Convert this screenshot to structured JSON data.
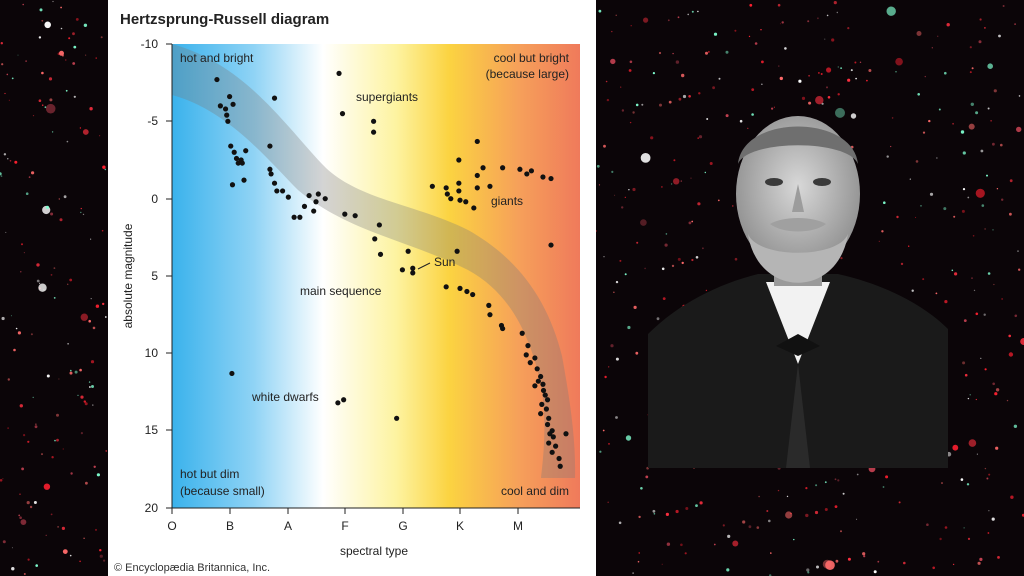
{
  "chart_data": {
    "type": "scatter",
    "title": "Hertzsprung-Russell diagram",
    "xlabel": "spectral type",
    "ylabel": "absolute magnitude",
    "x_categories": [
      "O",
      "B",
      "A",
      "F",
      "G",
      "K",
      "M"
    ],
    "y_ticks": [
      "-10",
      "-5",
      "0",
      "5",
      "10",
      "15",
      "20"
    ],
    "ylim": [
      -10,
      20
    ],
    "y_inverted": true,
    "background_gradient": [
      "#3ab2ec",
      "#8fd3f5",
      "#ffffff",
      "#fdf3a0",
      "#fbd341",
      "#f6a05a",
      "#ef7a5b"
    ],
    "region_labels": {
      "hot_bright": "hot and bright",
      "cool_bright_1": "cool but bright",
      "cool_bright_2": "(because large)",
      "hot_dim_1": "hot but dim",
      "hot_dim_2": "(because small)",
      "cool_dim": "cool and dim"
    },
    "annotations": {
      "supergiants": "supergiants",
      "giants": "giants",
      "sun": "Sun",
      "main_sequence": "main sequence",
      "white_dwarfs": "white dwarfs"
    },
    "points": [
      [
        0.78,
        -7.7
      ],
      [
        0.84,
        -6.0
      ],
      [
        0.93,
        -5.8
      ],
      [
        0.95,
        -5.4
      ],
      [
        1.0,
        -6.6
      ],
      [
        1.06,
        -6.1
      ],
      [
        0.97,
        -5.0
      ],
      [
        1.02,
        -3.4
      ],
      [
        1.08,
        -3.0
      ],
      [
        1.12,
        -2.6
      ],
      [
        1.2,
        -2.5
      ],
      [
        1.28,
        -3.1
      ],
      [
        1.15,
        -2.3
      ],
      [
        1.22,
        -2.3
      ],
      [
        1.05,
        -0.9
      ],
      [
        1.25,
        -1.2
      ],
      [
        1.78,
        -6.5
      ],
      [
        1.7,
        -3.4
      ],
      [
        1.7,
        -1.9
      ],
      [
        1.72,
        -1.6
      ],
      [
        1.78,
        -1.0
      ],
      [
        1.82,
        -0.5
      ],
      [
        1.92,
        -0.5
      ],
      [
        2.02,
        -0.1
      ],
      [
        2.12,
        1.2
      ],
      [
        2.22,
        1.2
      ],
      [
        2.3,
        0.5
      ],
      [
        2.38,
        -0.2
      ],
      [
        2.46,
        0.8
      ],
      [
        2.5,
        0.2
      ],
      [
        2.54,
        -0.3
      ],
      [
        2.66,
        0.0
      ],
      [
        2.9,
        -8.1
      ],
      [
        2.96,
        -5.5
      ],
      [
        3.5,
        -5.0
      ],
      [
        3.5,
        -4.3
      ],
      [
        3.0,
        1.0
      ],
      [
        3.18,
        1.1
      ],
      [
        3.6,
        1.7
      ],
      [
        3.52,
        2.6
      ],
      [
        3.62,
        3.6
      ],
      [
        4.1,
        3.4
      ],
      [
        4.0,
        4.6
      ],
      [
        4.18,
        4.5
      ],
      [
        4.18,
        4.8
      ],
      [
        4.95,
        3.4
      ],
      [
        3.9,
        14.2
      ],
      [
        1.04,
        11.3
      ],
      [
        2.88,
        13.2
      ],
      [
        2.98,
        13.0
      ],
      [
        4.52,
        -0.8
      ],
      [
        4.76,
        -0.7
      ],
      [
        4.78,
        -0.3
      ],
      [
        4.84,
        0.0
      ],
      [
        4.98,
        -0.5
      ],
      [
        5.0,
        0.1
      ],
      [
        5.1,
        0.2
      ],
      [
        5.24,
        0.6
      ],
      [
        5.3,
        -0.7
      ],
      [
        4.98,
        -1.0
      ],
      [
        4.98,
        -2.5
      ],
      [
        5.3,
        -1.5
      ],
      [
        5.4,
        -2.0
      ],
      [
        5.52,
        -0.8
      ],
      [
        5.3,
        -3.7
      ],
      [
        5.74,
        -2.0
      ],
      [
        6.04,
        -1.9
      ],
      [
        6.16,
        -1.6
      ],
      [
        6.24,
        -1.8
      ],
      [
        6.44,
        -1.4
      ],
      [
        6.58,
        -1.3
      ],
      [
        6.58,
        3.0
      ],
      [
        4.76,
        5.7
      ],
      [
        5.0,
        5.8
      ],
      [
        5.12,
        6.0
      ],
      [
        5.22,
        6.2
      ],
      [
        5.5,
        6.9
      ],
      [
        5.52,
        7.5
      ],
      [
        5.72,
        8.2
      ],
      [
        5.74,
        8.4
      ],
      [
        6.08,
        8.7
      ],
      [
        6.18,
        9.5
      ],
      [
        6.15,
        10.1
      ],
      [
        6.22,
        10.6
      ],
      [
        6.3,
        10.3
      ],
      [
        6.34,
        11.0
      ],
      [
        6.4,
        11.5
      ],
      [
        6.36,
        11.8
      ],
      [
        6.44,
        12.0
      ],
      [
        6.45,
        12.4
      ],
      [
        6.48,
        12.7
      ],
      [
        6.52,
        13.0
      ],
      [
        6.42,
        13.3
      ],
      [
        6.5,
        13.6
      ],
      [
        6.54,
        14.2
      ],
      [
        6.52,
        14.6
      ],
      [
        6.56,
        15.2
      ],
      [
        6.6,
        15.0
      ],
      [
        6.62,
        15.4
      ],
      [
        6.54,
        15.8
      ],
      [
        6.66,
        16.0
      ],
      [
        6.6,
        16.4
      ],
      [
        6.72,
        16.8
      ],
      [
        6.74,
        17.3
      ],
      [
        6.84,
        15.2
      ],
      [
        6.3,
        12.1
      ],
      [
        6.4,
        13.9
      ]
    ]
  },
  "credit": "© Encyclopædia Britannica, Inc."
}
